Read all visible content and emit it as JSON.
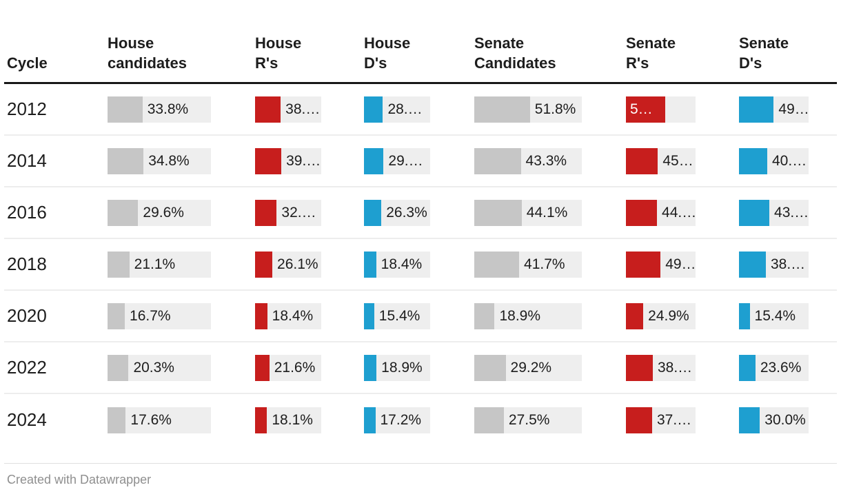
{
  "header": {
    "columns": [
      "Cycle",
      "House candidates",
      "House R's",
      "House D's",
      "Senate Candidates",
      "Senate R's",
      "Senate D's"
    ]
  },
  "footer": {
    "attribution": "Created with Datawrapper"
  },
  "colors": {
    "candidates": "#c6c6c6",
    "republicans": "#c71e1d",
    "democrats": "#1e9fd0",
    "track": "#eeeeee"
  },
  "chart_data": {
    "type": "table",
    "title": "",
    "legend_position": "none",
    "bar_scale_max": 100,
    "columns": [
      "Cycle",
      "House candidates",
      "House R's",
      "House D's",
      "Senate Candidates",
      "Senate R's",
      "Senate D's"
    ],
    "rows": [
      {
        "cycle": "2012",
        "cells": [
          {
            "label": "33.8%",
            "fill": 33.8,
            "series": "candidates"
          },
          {
            "label": "38.…",
            "fill": 38.7,
            "series": "republicans"
          },
          {
            "label": "28.…",
            "fill": 28.6,
            "series": "democrats"
          },
          {
            "label": "51.8%",
            "fill": 51.8,
            "series": "candidates"
          },
          {
            "label": "5…",
            "fill": 56.0,
            "series": "republicans",
            "label_inside": true
          },
          {
            "label": "49…",
            "fill": 49.9,
            "series": "democrats"
          }
        ]
      },
      {
        "cycle": "2014",
        "cells": [
          {
            "label": "34.8%",
            "fill": 34.8,
            "series": "candidates"
          },
          {
            "label": "39.…",
            "fill": 39.7,
            "series": "republicans"
          },
          {
            "label": "29.…",
            "fill": 29.6,
            "series": "democrats"
          },
          {
            "label": "43.3%",
            "fill": 43.3,
            "series": "candidates"
          },
          {
            "label": "45…",
            "fill": 45.9,
            "series": "republicans"
          },
          {
            "label": "40.…",
            "fill": 40.6,
            "series": "democrats"
          }
        ]
      },
      {
        "cycle": "2016",
        "cells": [
          {
            "label": "29.6%",
            "fill": 29.6,
            "series": "candidates"
          },
          {
            "label": "32.…",
            "fill": 32.7,
            "series": "republicans"
          },
          {
            "label": "26.3%",
            "fill": 26.3,
            "series": "democrats"
          },
          {
            "label": "44.1%",
            "fill": 44.1,
            "series": "candidates"
          },
          {
            "label": "44.…",
            "fill": 44.6,
            "series": "republicans"
          },
          {
            "label": "43.…",
            "fill": 43.6,
            "series": "democrats"
          }
        ]
      },
      {
        "cycle": "2018",
        "cells": [
          {
            "label": "21.1%",
            "fill": 21.1,
            "series": "candidates"
          },
          {
            "label": "26.1%",
            "fill": 26.1,
            "series": "republicans"
          },
          {
            "label": "18.4%",
            "fill": 18.4,
            "series": "democrats"
          },
          {
            "label": "41.7%",
            "fill": 41.7,
            "series": "candidates"
          },
          {
            "label": "49…",
            "fill": 49.7,
            "series": "republicans"
          },
          {
            "label": "38.…",
            "fill": 38.6,
            "series": "democrats"
          }
        ]
      },
      {
        "cycle": "2020",
        "cells": [
          {
            "label": "16.7%",
            "fill": 16.7,
            "series": "candidates"
          },
          {
            "label": "18.4%",
            "fill": 18.4,
            "series": "republicans"
          },
          {
            "label": "15.4%",
            "fill": 15.4,
            "series": "democrats"
          },
          {
            "label": "18.9%",
            "fill": 18.9,
            "series": "candidates"
          },
          {
            "label": "24.9%",
            "fill": 24.9,
            "series": "republicans"
          },
          {
            "label": "15.4%",
            "fill": 15.4,
            "series": "democrats"
          }
        ]
      },
      {
        "cycle": "2022",
        "cells": [
          {
            "label": "20.3%",
            "fill": 20.3,
            "series": "candidates"
          },
          {
            "label": "21.6%",
            "fill": 21.6,
            "series": "republicans"
          },
          {
            "label": "18.9%",
            "fill": 18.9,
            "series": "democrats"
          },
          {
            "label": "29.2%",
            "fill": 29.2,
            "series": "candidates"
          },
          {
            "label": "38.…",
            "fill": 38.6,
            "series": "republicans"
          },
          {
            "label": "23.6%",
            "fill": 23.6,
            "series": "democrats"
          }
        ]
      },
      {
        "cycle": "2024",
        "cells": [
          {
            "label": "17.6%",
            "fill": 17.6,
            "series": "candidates"
          },
          {
            "label": "18.1%",
            "fill": 18.1,
            "series": "republicans"
          },
          {
            "label": "17.2%",
            "fill": 17.2,
            "series": "democrats"
          },
          {
            "label": "27.5%",
            "fill": 27.5,
            "series": "candidates"
          },
          {
            "label": "37.…",
            "fill": 37.6,
            "series": "republicans"
          },
          {
            "label": "30.0%",
            "fill": 30.0,
            "series": "democrats"
          }
        ]
      }
    ]
  }
}
